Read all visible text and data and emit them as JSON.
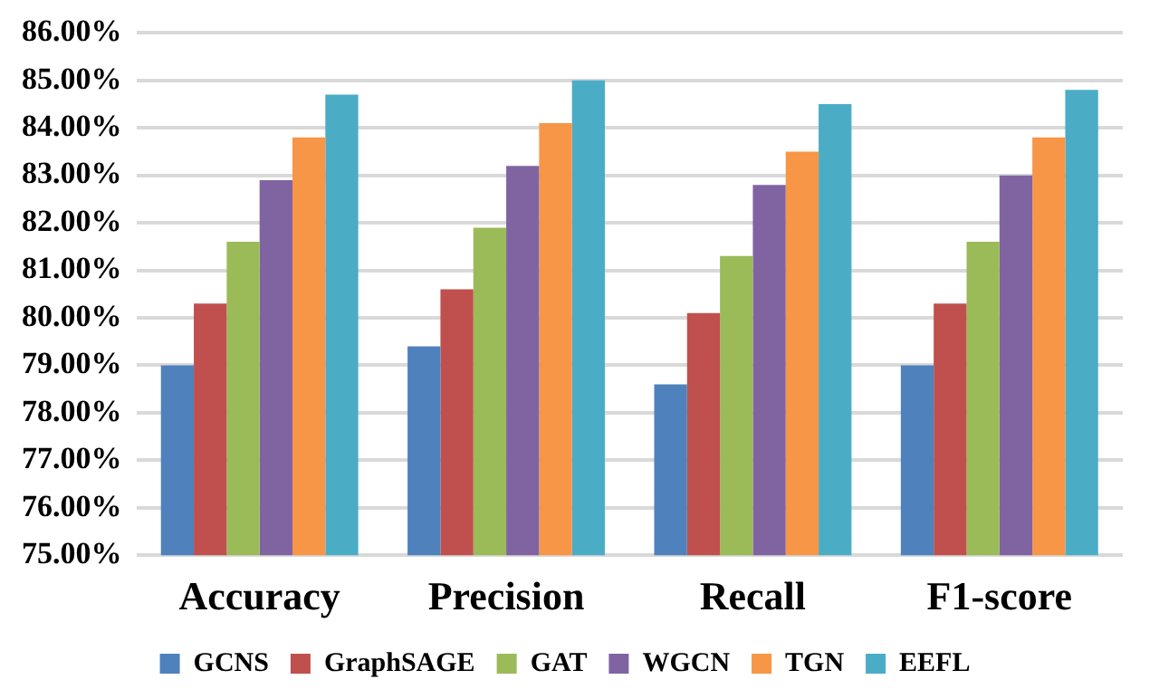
{
  "chart_data": {
    "type": "bar",
    "categories": [
      "Accuracy",
      "Precision",
      "Recall",
      "F1-score"
    ],
    "series": [
      {
        "name": "GCNS",
        "color": "#4f81bd",
        "values": [
          79.0,
          79.4,
          78.6,
          79.0
        ]
      },
      {
        "name": "GraphSAGE",
        "color": "#c0504d",
        "values": [
          80.3,
          80.6,
          80.1,
          80.3
        ]
      },
      {
        "name": "GAT",
        "color": "#9bbb59",
        "values": [
          81.6,
          81.9,
          81.3,
          81.6
        ]
      },
      {
        "name": "WGCN",
        "color": "#8064a2",
        "values": [
          82.9,
          83.2,
          82.8,
          83.0
        ]
      },
      {
        "name": "TGN",
        "color": "#f79646",
        "values": [
          83.8,
          84.1,
          83.5,
          83.8
        ]
      },
      {
        "name": "EEFL",
        "color": "#4bacc6",
        "values": [
          84.7,
          85.0,
          84.5,
          84.8
        ]
      }
    ],
    "ylim": [
      75,
      86
    ],
    "yticks": [
      {
        "value": 75,
        "label": "75.00%"
      },
      {
        "value": 76,
        "label": "76.00%"
      },
      {
        "value": 77,
        "label": "77.00%"
      },
      {
        "value": 78,
        "label": "78.00%"
      },
      {
        "value": 79,
        "label": "79.00%"
      },
      {
        "value": 80,
        "label": "80.00%"
      },
      {
        "value": 81,
        "label": "81.00%"
      },
      {
        "value": 82,
        "label": "82.00%"
      },
      {
        "value": 83,
        "label": "83.00%"
      },
      {
        "value": 84,
        "label": "84.00%"
      },
      {
        "value": 85,
        "label": "85.00%"
      },
      {
        "value": 86,
        "label": "86.00%"
      }
    ],
    "grid": "y",
    "legend": "bottom"
  }
}
